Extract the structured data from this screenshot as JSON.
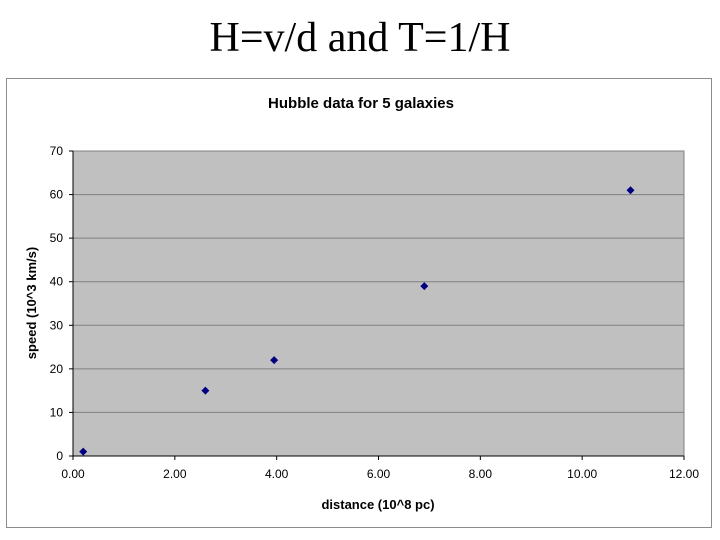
{
  "slide": {
    "title": "H=v/d and T=1/H"
  },
  "chart_data": {
    "type": "scatter",
    "title": "Hubble data for 5 galaxies",
    "xlabel": "distance (10^8 pc)",
    "ylabel": "speed (10^3 km/s)",
    "xlim": [
      0,
      12
    ],
    "ylim": [
      0,
      70
    ],
    "x_ticks": [
      "0.00",
      "2.00",
      "4.00",
      "6.00",
      "8.00",
      "10.00",
      "12.00"
    ],
    "y_ticks": [
      "0",
      "10",
      "20",
      "30",
      "40",
      "50",
      "60",
      "70"
    ],
    "grid": "horizontal",
    "legend": "none",
    "colors": {
      "plot_background": "#c0c0c0",
      "marker": "#000080",
      "gridline": "#808080"
    },
    "series": [
      {
        "x": [
          0.2,
          2.6,
          3.95,
          6.9,
          10.95
        ],
        "y": [
          1,
          15,
          22,
          39,
          61
        ]
      }
    ]
  }
}
